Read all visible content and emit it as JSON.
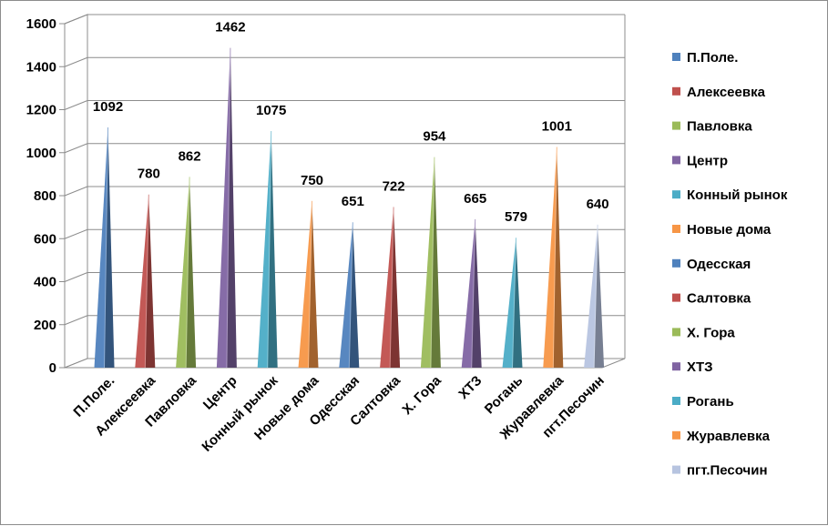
{
  "chart_data": {
    "type": "bar",
    "style": "3d-cone",
    "title": "",
    "xlabel": "",
    "ylabel": "",
    "ylim": [
      0,
      1600
    ],
    "ytick_step": 200,
    "yticks": [
      "0",
      "200",
      "400",
      "600",
      "800",
      "1000",
      "1200",
      "1400",
      "1600"
    ],
    "grid": true,
    "legend_position": "right",
    "categories": [
      "П.Поле.",
      "Алексеевка",
      "Павловка",
      "Центр",
      "Конный рынок",
      "Новые дома",
      "Одесская",
      "Салтовка",
      "Х. Гора",
      "ХТЗ",
      "Рогань",
      "Журавлевка",
      "пгт.Песочин"
    ],
    "values": [
      1092,
      780,
      862,
      1462,
      1075,
      750,
      651,
      722,
      954,
      665,
      579,
      1001,
      640
    ],
    "data_labels": [
      "1092",
      "780",
      "862",
      "1462",
      "1075",
      "750",
      "651",
      "722",
      "954",
      "665",
      "579",
      "1001",
      "640"
    ],
    "colors": [
      "#4f81bd",
      "#c0504d",
      "#9bbb59",
      "#8064a2",
      "#4bacc6",
      "#f79646",
      "#4f81bd",
      "#c0504d",
      "#9bbb59",
      "#8064a2",
      "#4bacc6",
      "#f79646",
      "#b7c4e0"
    ],
    "legend": [
      "П.Поле.",
      "Алексеевка",
      "Павловка",
      "Центр",
      "Конный рынок",
      "Новые дома",
      "Одесская",
      "Салтовка",
      "Х. Гора",
      "ХТЗ",
      "Рогань",
      "Журавлевка",
      "пгт.Песочин"
    ]
  }
}
